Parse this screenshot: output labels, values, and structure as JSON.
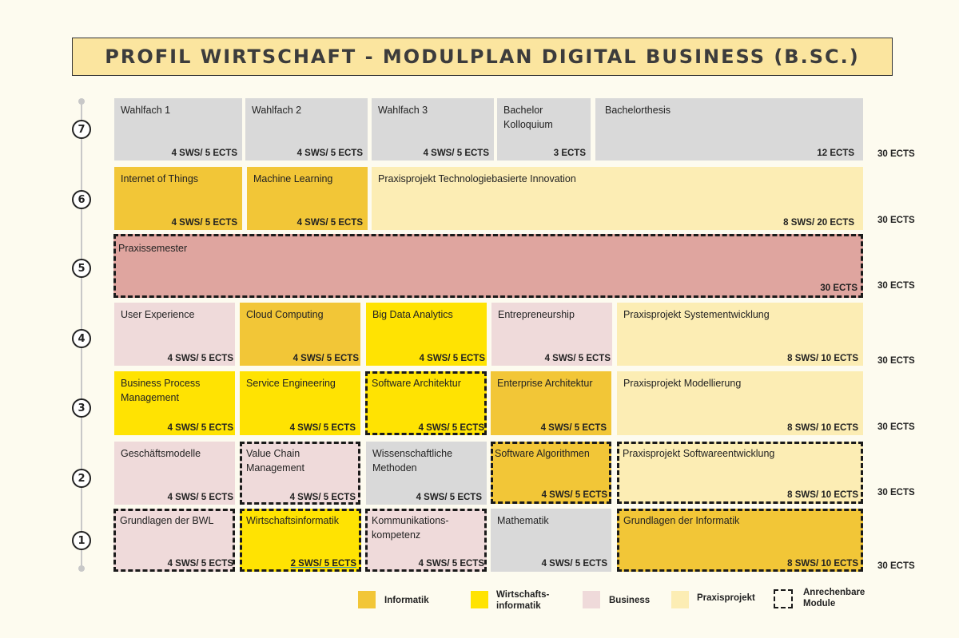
{
  "title": "PROFIL WIRTSCHAFT - MODULPLAN DIGITAL BUSINESS (B.SC.)",
  "semesters": [
    "7",
    "6",
    "5",
    "4",
    "3",
    "2",
    "1"
  ],
  "totals": [
    "30 ECTS",
    "30 ECTS",
    "30 ECTS",
    "30 ECTS",
    "30 ECTS",
    "30 ECTS",
    "30 ECTS"
  ],
  "modules": {
    "s7": [
      {
        "name": "Wahlfach 1",
        "ects": "4 SWS/ 5 ECTS"
      },
      {
        "name": "Wahlfach 2",
        "ects": "4 SWS/ 5 ECTS"
      },
      {
        "name": "Wahlfach 3",
        "ects": "4 SWS/ 5 ECTS"
      },
      {
        "name": "Bachelor Kolloquium",
        "ects": "3 ECTS"
      },
      {
        "name": "Bachelorthesis",
        "ects": "12 ECTS"
      }
    ],
    "s6": [
      {
        "name": "Internet of Things",
        "ects": "4 SWS/ 5 ECTS"
      },
      {
        "name": "Machine Learning",
        "ects": "4 SWS/ 5 ECTS"
      },
      {
        "name": "Praxisprojekt Technologiebasierte Innovation",
        "ects": "8 SWS/ 20 ECTS"
      }
    ],
    "s5": [
      {
        "name": "Praxissemester",
        "ects": "30 ECTS"
      }
    ],
    "s4": [
      {
        "name": "User Experience",
        "ects": "4 SWS/ 5 ECTS"
      },
      {
        "name": "Cloud Computing",
        "ects": "4 SWS/ 5 ECTS"
      },
      {
        "name": "Big Data Analytics",
        "ects": "4 SWS/ 5 ECTS"
      },
      {
        "name": "Entrepreneurship",
        "ects": "4 SWS/ 5 ECTS"
      },
      {
        "name": "Praxisprojekt Systementwicklung",
        "ects": "8 SWS/ 10 ECTS"
      }
    ],
    "s3": [
      {
        "name": "Business Process Management",
        "ects": "4 SWS/ 5 ECTS"
      },
      {
        "name": "Service Engineering",
        "ects": "4 SWS/ 5 ECTS"
      },
      {
        "name": "Software Architektur",
        "ects": "4 SWS/ 5 ECTS"
      },
      {
        "name": "Enterprise Architektur",
        "ects": "4 SWS/ 5 ECTS"
      },
      {
        "name": "Praxisprojekt Modellierung",
        "ects": "8 SWS/ 10 ECTS"
      }
    ],
    "s2": [
      {
        "name": "Geschäftsmodelle",
        "ects": "4 SWS/ 5 ECTS"
      },
      {
        "name": "Value Chain Management",
        "ects": "4 SWS/ 5 ECTS"
      },
      {
        "name": "Wissenschaftliche Methoden",
        "ects": "4 SWS/ 5 ECTS"
      },
      {
        "name": "Software Algorithmen",
        "ects": "4 SWS/ 5 ECTS"
      },
      {
        "name": "Praxisprojekt Softwareentwicklung",
        "ects": "8 SWS/ 10 ECTS"
      }
    ],
    "s1": [
      {
        "name": "Grundlagen der BWL",
        "ects": "4 SWS/ 5 ECTS"
      },
      {
        "name": "Wirtschaftsinformatik",
        "ects": "2 SWS/ 5 ECTS"
      },
      {
        "name": "Kommunikations-kompetenz",
        "ects": "4 SWS/ 5 ECTS"
      },
      {
        "name": "Mathematik",
        "ects": "4 SWS/ 5 ECTS"
      },
      {
        "name": "Grundlagen der Informatik",
        "ects": "8 SWS/ 10 ECTS"
      }
    ]
  },
  "legend": {
    "informatik": "Informatik",
    "wirtschaftsinformatik": "Wirtschafts-informatik",
    "business": "Business",
    "praxisprojekt": "Praxisprojekt",
    "anrechenbar": "Anrechenbare Module"
  },
  "colors": {
    "informatik": "#f2c637",
    "wirtschaftsinformatik": "#ffe302",
    "business": "#efdada",
    "praxisprojekt": "#fcedb4",
    "praxissemester": "#dfa59f",
    "wahl": "#d9d9d9"
  }
}
